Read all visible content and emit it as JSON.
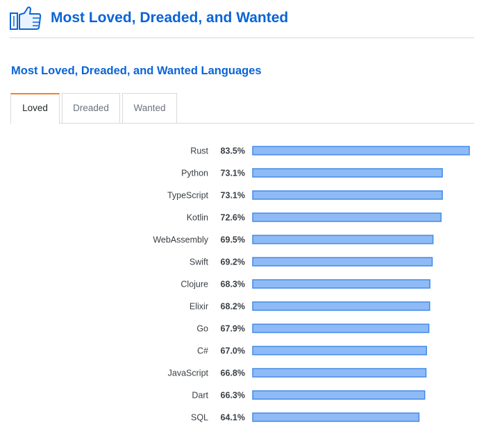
{
  "header": {
    "title": "Most Loved, Dreaded, and Wanted",
    "icon": "thumbs-up-icon"
  },
  "section": {
    "title": "Most Loved, Dreaded, and Wanted Languages"
  },
  "tabs": [
    {
      "label": "Loved",
      "active": true
    },
    {
      "label": "Dreaded",
      "active": false
    },
    {
      "label": "Wanted",
      "active": false
    }
  ],
  "colors": {
    "accent": "#0a64d6",
    "bar_fill": "#8ebaf5",
    "bar_stroke": "#3b86e8",
    "active_tab": "#f48024"
  },
  "chart_data": {
    "type": "bar",
    "orientation": "horizontal",
    "categories": [
      "Rust",
      "Python",
      "TypeScript",
      "Kotlin",
      "WebAssembly",
      "Swift",
      "Clojure",
      "Elixir",
      "Go",
      "C#",
      "JavaScript",
      "Dart",
      "SQL"
    ],
    "values": [
      83.5,
      73.1,
      73.1,
      72.6,
      69.5,
      69.2,
      68.3,
      68.2,
      67.9,
      67.0,
      66.8,
      66.3,
      64.1
    ],
    "value_labels": [
      "83.5%",
      "73.1%",
      "73.1%",
      "72.6%",
      "69.5%",
      "69.2%",
      "68.3%",
      "68.2%",
      "67.9%",
      "67.0%",
      "66.8%",
      "66.3%",
      "64.1%"
    ],
    "unit": "%",
    "grid": false,
    "legend": "none"
  }
}
